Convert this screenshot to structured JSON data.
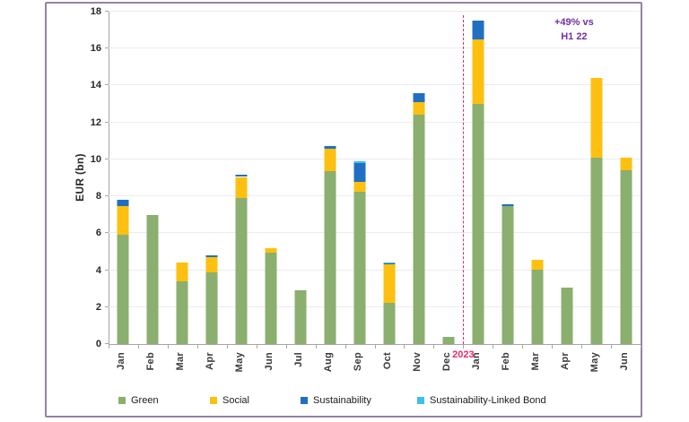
{
  "chart_data": {
    "type": "bar",
    "stacked": true,
    "title": "",
    "ylabel": "EUR (bn)",
    "ylim": [
      0,
      18
    ],
    "ytick_step": 2,
    "yticks": [
      0,
      2,
      4,
      6,
      8,
      10,
      12,
      14,
      16,
      18
    ],
    "grid": "horizontal",
    "legend_position": "bottom",
    "categories": [
      "Jan",
      "Feb",
      "Mar",
      "Apr",
      "May",
      "Jun",
      "Jul",
      "Aug",
      "Sep",
      "Oct",
      "Nov",
      "Dec",
      "Jan",
      "Feb",
      "Mar",
      "Apr",
      "May",
      "Jun"
    ],
    "series": [
      {
        "name": "Green",
        "color": "#8BAF6E",
        "values": [
          5.9,
          7.0,
          3.4,
          3.9,
          7.9,
          4.95,
          2.9,
          9.35,
          8.25,
          2.25,
          12.4,
          0.4,
          13.0,
          7.45,
          4.05,
          3.05,
          10.1,
          9.4
        ]
      },
      {
        "name": "Social",
        "color": "#FDC010",
        "values": [
          1.55,
          0,
          1.0,
          0.8,
          1.15,
          0.25,
          0,
          1.25,
          0.55,
          2.05,
          0.7,
          0,
          3.5,
          0,
          0.5,
          0,
          4.3,
          0.7
        ]
      },
      {
        "name": "Sustainability",
        "color": "#1F70C2",
        "values": [
          0.35,
          0,
          0,
          0.1,
          0.1,
          0,
          0,
          0.1,
          1.0,
          0.05,
          0.5,
          0,
          1.0,
          0.1,
          0,
          0,
          0,
          0
        ]
      },
      {
        "name": "Sustainability-Linked Bond",
        "color": "#3FBFEF",
        "values": [
          0,
          0,
          0,
          0,
          0,
          0,
          0,
          0,
          0.1,
          0.05,
          0,
          0,
          0,
          0,
          0,
          0,
          0,
          0
        ]
      }
    ],
    "divider": {
      "after_index": 11,
      "label": "2023",
      "color": "#E42A6A"
    },
    "annotation": {
      "line1": "+49% vs",
      "line2": "H1 22",
      "color": "#7030A0"
    }
  },
  "style_colors": {
    "frame_border": "#9384A2",
    "gridline": "#ECECEC",
    "axis_line": "#A6A6A6",
    "axis_text": "#262626"
  }
}
